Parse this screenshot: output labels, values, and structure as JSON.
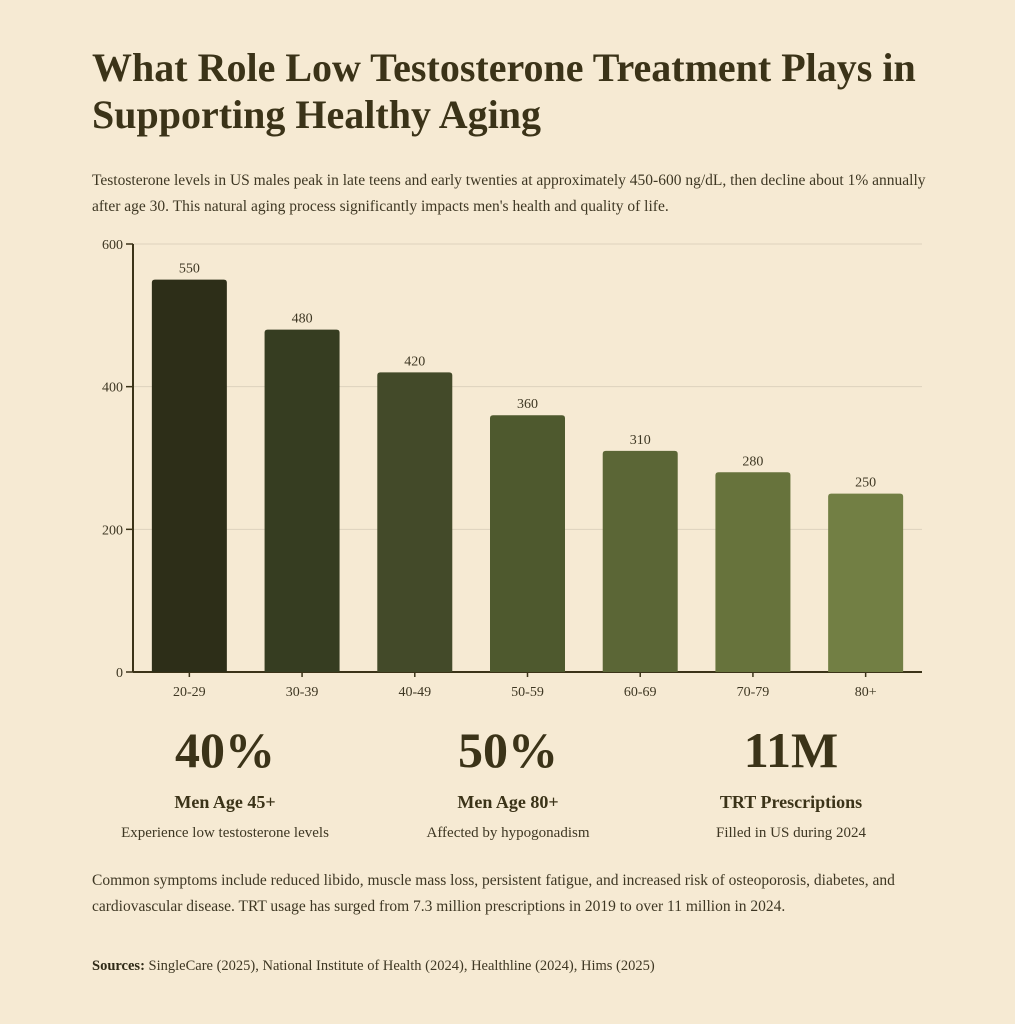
{
  "title": "What Role Low Testosterone Treatment Plays in Supporting Healthy Aging",
  "intro": "Testosterone levels in US males peak in late teens and early twenties at approximately 450-600 ng/dL, then decline about 1% annually after age 30. This natural aging process significantly impacts men's health and quality of life.",
  "chart_data": {
    "type": "bar",
    "title": "",
    "xlabel": "",
    "ylabel": "",
    "categories": [
      "20-29",
      "30-39",
      "40-49",
      "50-59",
      "60-69",
      "70-79",
      "80+"
    ],
    "values": [
      550,
      480,
      420,
      360,
      310,
      280,
      250
    ],
    "ylim": [
      0,
      600
    ],
    "yticks": [
      0,
      200,
      400,
      600
    ],
    "grid": true,
    "bar_colors": [
      "#2d2e18",
      "#363d21",
      "#434a29",
      "#4e592e",
      "#5b6636",
      "#67733c",
      "#727f44"
    ]
  },
  "stats": [
    {
      "value": "40%",
      "label": "Men Age 45+",
      "desc": "Experience low testosterone levels"
    },
    {
      "value": "50%",
      "label": "Men Age 80+",
      "desc": "Affected by hypogonadism"
    },
    {
      "value": "11M",
      "label": "TRT Prescriptions",
      "desc": "Filled in US during 2024"
    }
  ],
  "summary": "Common symptoms include reduced libido, muscle mass loss, persistent fatigue, and increased risk of osteoporosis, diabetes, and cardiovascular disease. TRT usage has surged from 7.3 million prescriptions in 2019 to over 11 million in 2024.",
  "sources": {
    "label": "Sources:",
    "text": "SingleCare (2025), National Institute of Health (2024), Healthline (2024), Hims (2025)"
  },
  "colors": {
    "background": "#f6ead3",
    "text": "#3b3318",
    "axis": "#3b3318",
    "grid": "#ddd2bd"
  }
}
